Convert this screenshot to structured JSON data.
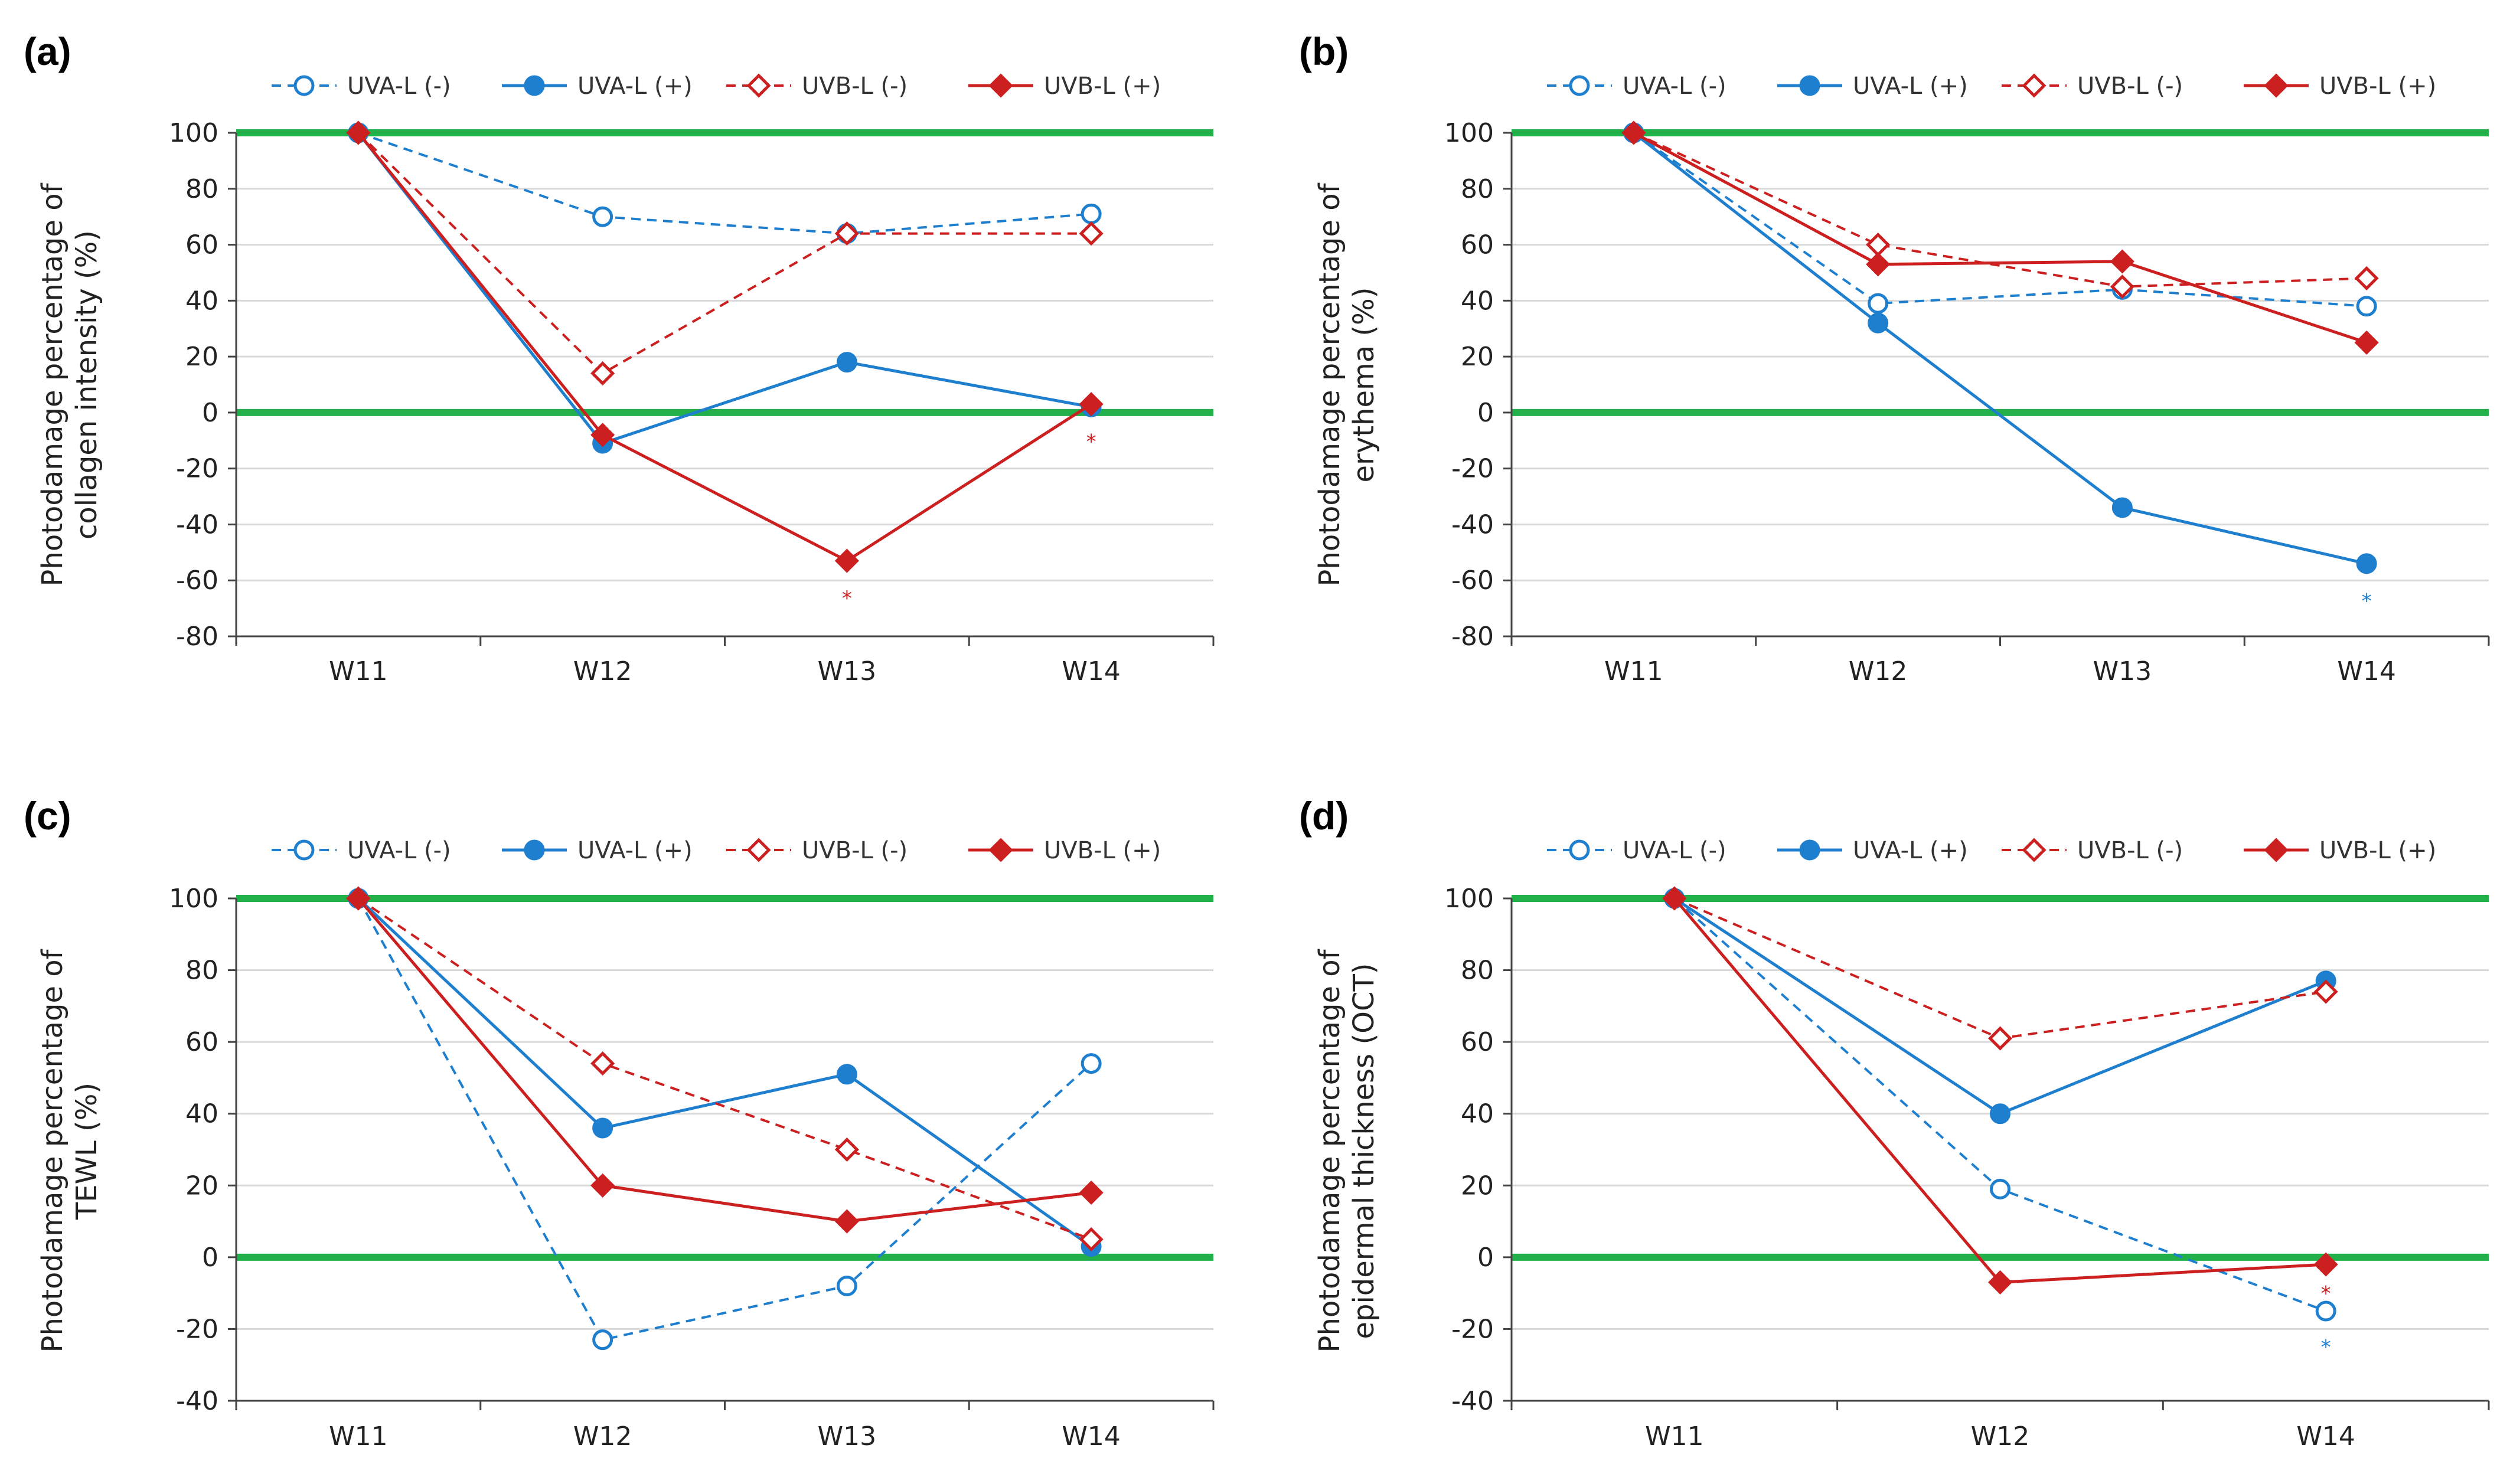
{
  "colors": {
    "uva": "#1f7fcf",
    "uvb": "#cc1f1f",
    "reference_line": "#22b04b",
    "grid": "#d9d9d9",
    "axis": "#444444"
  },
  "chart_data": [
    {
      "type": "line",
      "panel_label": "(a)",
      "ylabel": [
        "Photodamage percentage of",
        "collagen intensity (%)"
      ],
      "categories": [
        "W11",
        "W12",
        "W13",
        "W14"
      ],
      "ylim": [
        -80,
        100
      ],
      "yticks": [
        100,
        80,
        60,
        40,
        20,
        0,
        -20,
        -40,
        -60,
        -80
      ],
      "reference_lines": [
        100,
        0
      ],
      "legend_position": "top",
      "series": [
        {
          "name": "UVA-L (-)",
          "color_key": "uva",
          "dashed": true,
          "filled": false,
          "marker": "circle",
          "values": [
            100,
            70,
            64,
            71
          ]
        },
        {
          "name": "UVA-L (+)",
          "color_key": "uva",
          "dashed": false,
          "filled": true,
          "marker": "circle",
          "values": [
            100,
            -11,
            18,
            2
          ]
        },
        {
          "name": "UVB-L (-)",
          "color_key": "uvb",
          "dashed": true,
          "filled": false,
          "marker": "diamond",
          "values": [
            100,
            14,
            64,
            64
          ]
        },
        {
          "name": "UVB-L (+)",
          "color_key": "uvb",
          "dashed": false,
          "filled": true,
          "marker": "diamond",
          "values": [
            100,
            -8,
            -53,
            3
          ]
        }
      ],
      "annotations": [
        {
          "text": "*",
          "category": "W13",
          "y": -65,
          "color_key": "uvb"
        },
        {
          "text": "*",
          "category": "W14",
          "y": -9,
          "color_key": "uvb"
        }
      ]
    },
    {
      "type": "line",
      "panel_label": "(b)",
      "ylabel": [
        "Photodamage percentage of",
        "erythema (%)"
      ],
      "categories": [
        "W11",
        "W12",
        "W13",
        "W14"
      ],
      "ylim": [
        -80,
        100
      ],
      "yticks": [
        100,
        80,
        60,
        40,
        20,
        0,
        -20,
        -40,
        -60,
        -80
      ],
      "reference_lines": [
        100,
        0
      ],
      "legend_position": "top",
      "series": [
        {
          "name": "UVA-L (-)",
          "color_key": "uva",
          "dashed": true,
          "filled": false,
          "marker": "circle",
          "values": [
            100,
            39,
            44,
            38
          ]
        },
        {
          "name": "UVA-L (+)",
          "color_key": "uva",
          "dashed": false,
          "filled": true,
          "marker": "circle",
          "values": [
            100,
            32,
            -34,
            -54
          ]
        },
        {
          "name": "UVB-L (-)",
          "color_key": "uvb",
          "dashed": true,
          "filled": false,
          "marker": "diamond",
          "values": [
            100,
            60,
            45,
            48
          ]
        },
        {
          "name": "UVB-L (+)",
          "color_key": "uvb",
          "dashed": false,
          "filled": true,
          "marker": "diamond",
          "values": [
            100,
            53,
            54,
            25
          ]
        }
      ],
      "annotations": [
        {
          "text": "*",
          "category": "W14",
          "y": -66,
          "color_key": "uva"
        }
      ]
    },
    {
      "type": "line",
      "panel_label": "(c)",
      "ylabel": [
        "Photodamage percentage of",
        "TEWL (%)"
      ],
      "categories": [
        "W11",
        "W12",
        "W13",
        "W14"
      ],
      "ylim": [
        -40,
        100
      ],
      "yticks": [
        100,
        80,
        60,
        40,
        20,
        0,
        -20,
        -40
      ],
      "reference_lines": [
        100,
        0
      ],
      "legend_position": "top",
      "series": [
        {
          "name": "UVA-L (-)",
          "color_key": "uva",
          "dashed": true,
          "filled": false,
          "marker": "circle",
          "values": [
            100,
            -23,
            -8,
            54
          ]
        },
        {
          "name": "UVA-L (+)",
          "color_key": "uva",
          "dashed": false,
          "filled": true,
          "marker": "circle",
          "values": [
            100,
            36,
            51,
            3
          ]
        },
        {
          "name": "UVB-L (-)",
          "color_key": "uvb",
          "dashed": true,
          "filled": false,
          "marker": "diamond",
          "values": [
            100,
            54,
            30,
            5
          ]
        },
        {
          "name": "UVB-L (+)",
          "color_key": "uvb",
          "dashed": false,
          "filled": true,
          "marker": "diamond",
          "values": [
            100,
            20,
            10,
            18
          ]
        }
      ],
      "annotations": []
    },
    {
      "type": "line",
      "panel_label": "(d)",
      "ylabel": [
        "Photodamage percentage of",
        "epidermal thickness (OCT)"
      ],
      "categories": [
        "W11",
        "W12",
        "W14"
      ],
      "ylim": [
        -40,
        100
      ],
      "yticks": [
        100,
        80,
        60,
        40,
        20,
        0,
        -20,
        -40
      ],
      "reference_lines": [
        100,
        0
      ],
      "legend_position": "top",
      "series": [
        {
          "name": "UVA-L (-)",
          "color_key": "uva",
          "dashed": true,
          "filled": false,
          "marker": "circle",
          "values": [
            100,
            19,
            -15
          ]
        },
        {
          "name": "UVA-L (+)",
          "color_key": "uva",
          "dashed": false,
          "filled": true,
          "marker": "circle",
          "values": [
            100,
            40,
            77
          ]
        },
        {
          "name": "UVB-L (-)",
          "color_key": "uvb",
          "dashed": true,
          "filled": false,
          "marker": "diamond",
          "values": [
            100,
            61,
            74
          ]
        },
        {
          "name": "UVB-L (+)",
          "color_key": "uvb",
          "dashed": false,
          "filled": true,
          "marker": "diamond",
          "values": [
            100,
            -7,
            -2
          ]
        }
      ],
      "annotations": [
        {
          "text": "*",
          "category": "W14",
          "y": -24,
          "color_key": "uva"
        },
        {
          "text": "*",
          "category": "W14",
          "y": -9,
          "color_key": "uvb"
        }
      ]
    }
  ]
}
